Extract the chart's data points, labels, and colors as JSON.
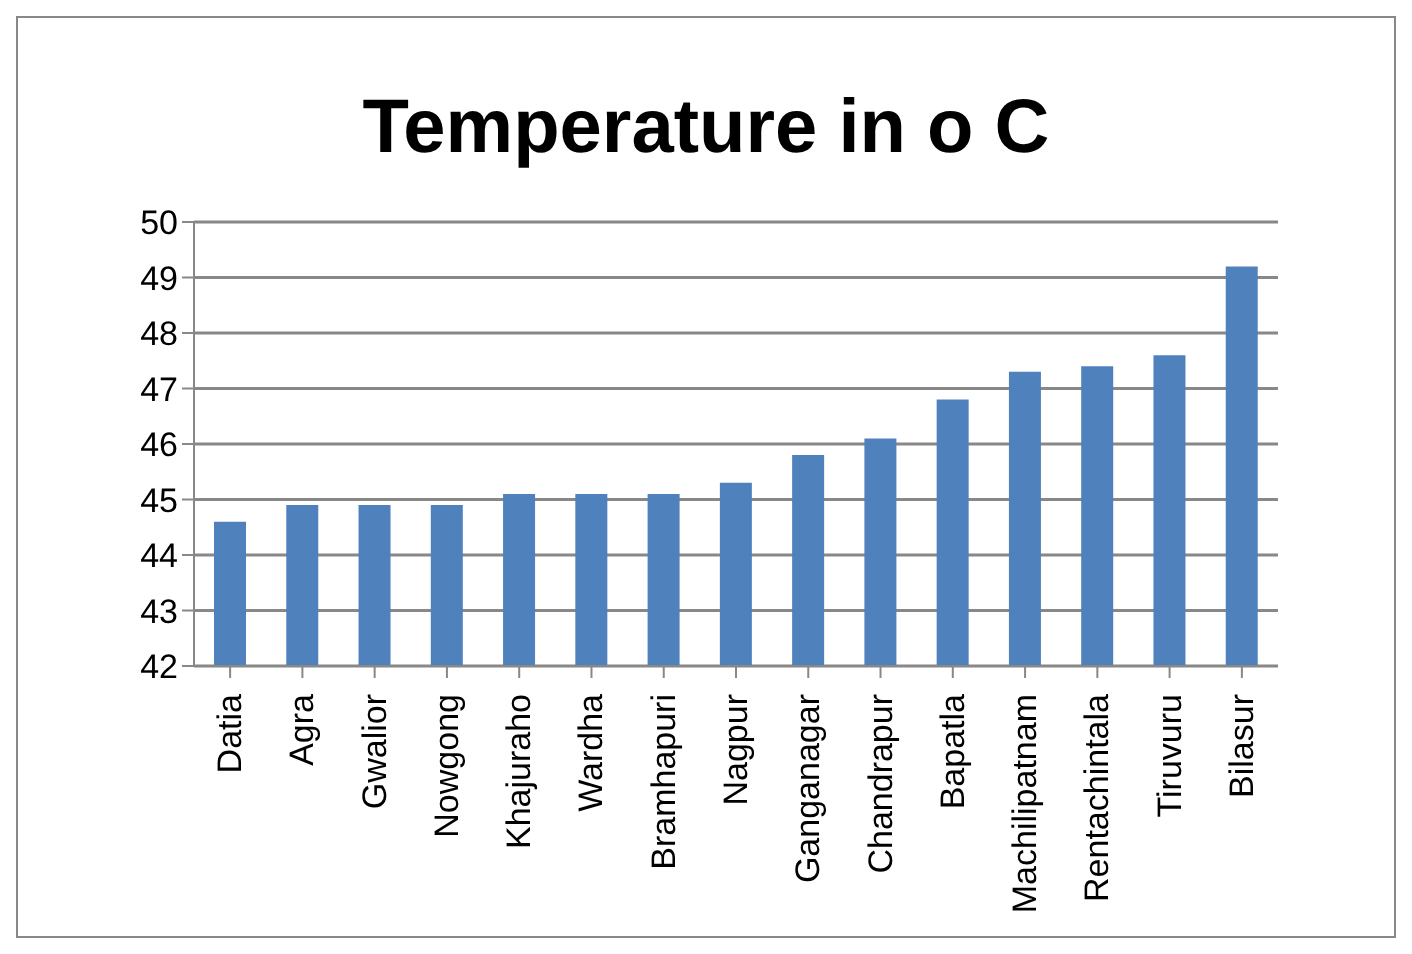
{
  "chart_data": {
    "type": "bar",
    "title": "Temperature in o C",
    "categories": [
      "Datia",
      "Agra",
      "Gwalior",
      "Nowgong",
      "Khajuraho",
      "Wardha",
      "Bramhapuri",
      "Nagpur",
      "Ganganagar",
      "Chandrapur",
      "Bapatla",
      "Machilipatnam",
      "Rentachintala",
      "Tiruvuru",
      "Bilasur"
    ],
    "values": [
      44.6,
      44.9,
      44.9,
      44.9,
      45.1,
      45.1,
      45.1,
      45.3,
      45.8,
      46.1,
      46.8,
      47.3,
      47.4,
      47.6,
      49.2
    ],
    "color": "#4f81bd",
    "ylim": [
      42,
      50
    ],
    "yticks": [
      42,
      43,
      44,
      45,
      46,
      47,
      48,
      49,
      50
    ],
    "grid": "y",
    "legend": false
  }
}
